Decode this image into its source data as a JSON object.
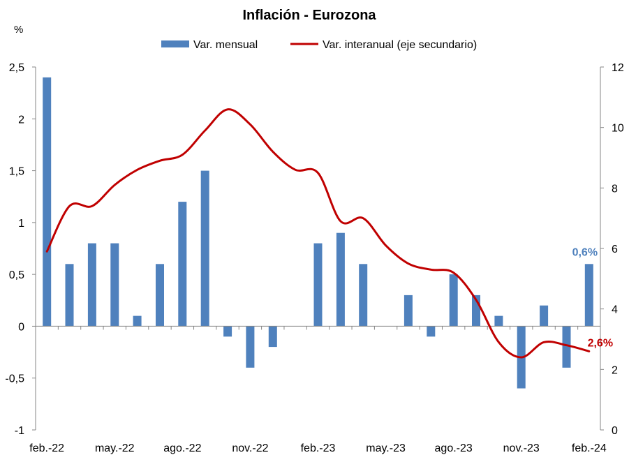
{
  "chart_data": {
    "type": "bar",
    "title": "Inflación - Eurozona",
    "ylabel_unit": "%",
    "x": [
      "feb.-22",
      "mar.-22",
      "abr.-22",
      "may.-22",
      "jun.-22",
      "jul.-22",
      "ago.-22",
      "sep.-22",
      "oct.-22",
      "nov.-22",
      "dic.-22",
      "ene.-23",
      "feb.-23",
      "mar.-23",
      "abr.-23",
      "may.-23",
      "jun.-23",
      "jul.-23",
      "ago.-23",
      "sep.-23",
      "oct.-23",
      "nov.-23",
      "dic.-23",
      "ene.-24",
      "feb.-24"
    ],
    "tick_labels": [
      "feb.-22",
      "may.-22",
      "ago.-22",
      "nov.-22",
      "feb.-23",
      "may.-23",
      "ago.-23",
      "nov.-23",
      "feb.-24"
    ],
    "tick_indices": [
      0,
      3,
      6,
      9,
      12,
      15,
      18,
      21,
      24
    ],
    "ylim_primary": [
      -1,
      2.5
    ],
    "yticks_primary": [
      "-1",
      "-0,5",
      "0",
      "0,5",
      "1",
      "1,5",
      "2",
      "2,5"
    ],
    "yticks_primary_values": [
      -1,
      -0.5,
      0,
      0.5,
      1,
      1.5,
      2,
      2.5
    ],
    "ylim_secondary": [
      0,
      12
    ],
    "yticks_secondary": [
      "0",
      "2",
      "4",
      "6",
      "8",
      "10",
      "12"
    ],
    "yticks_secondary_values": [
      0,
      2,
      4,
      6,
      8,
      10,
      12
    ],
    "series": [
      {
        "name": "Var. mensual",
        "type": "bar",
        "axis": "primary",
        "color": "#4F81BD",
        "values": [
          2.4,
          0.6,
          0.8,
          0.8,
          0.1,
          0.6,
          1.2,
          1.5,
          -0.1,
          -0.4,
          -0.2,
          0.0,
          0.8,
          0.9,
          0.6,
          0.0,
          0.3,
          -0.1,
          0.5,
          0.3,
          0.1,
          -0.6,
          0.2,
          -0.4,
          0.6
        ]
      },
      {
        "name": "Var. interanual (eje secundario)",
        "type": "line",
        "axis": "secondary",
        "color": "#C00000",
        "values": [
          5.9,
          7.4,
          7.4,
          8.1,
          8.6,
          8.9,
          9.1,
          9.9,
          10.6,
          10.1,
          9.2,
          8.6,
          8.5,
          6.9,
          7.0,
          6.1,
          5.5,
          5.3,
          5.2,
          4.3,
          2.9,
          2.4,
          2.9,
          2.8,
          2.6
        ]
      }
    ],
    "annotations": [
      {
        "text": "0,6%",
        "series": "Var. mensual",
        "color": "#4F81BD"
      },
      {
        "text": "2,6%",
        "series": "Var. interanual (eje secundario)",
        "color": "#C00000"
      }
    ],
    "legend": "top",
    "grid": false
  }
}
